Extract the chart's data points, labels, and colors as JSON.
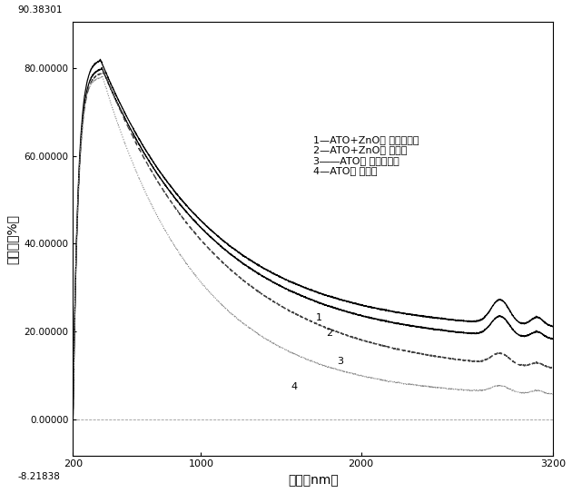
{
  "title": "",
  "xlabel": "波長（nm）",
  "ylabel": "透過率（%）",
  "xlim": [
    200,
    3200
  ],
  "ylim": [
    -8.21838,
    90.38301
  ],
  "xticks": [
    200,
    1000,
    2000,
    3200
  ],
  "xtick_labels": [
    "200",
    "1000",
    "2000",
    "3200"
  ],
  "yticks": [
    0.0,
    20.0,
    40.0,
    60.0,
    80.0
  ],
  "ytick_labels": [
    "0.00000",
    "20.00000",
    "40.00000",
    "60.00000",
    "80.00000"
  ],
  "y_top_label": "90.38301",
  "y_bot_label": "-8.21838",
  "legend_lines": [
    "1—ATO+ZnO， ディップ法",
    "2—ATO+ZnO， 賓力法",
    "3――ATO， ディップ法",
    "4—ATO， 重力法"
  ],
  "background_color": "#ffffff",
  "curve1_peak": 82,
  "curve2_peak": 80,
  "curve3_peak": 79,
  "curve4_peak": 78,
  "curve1_base": 20,
  "curve2_base": 17,
  "curve3_base": 10,
  "curve4_base": 5
}
